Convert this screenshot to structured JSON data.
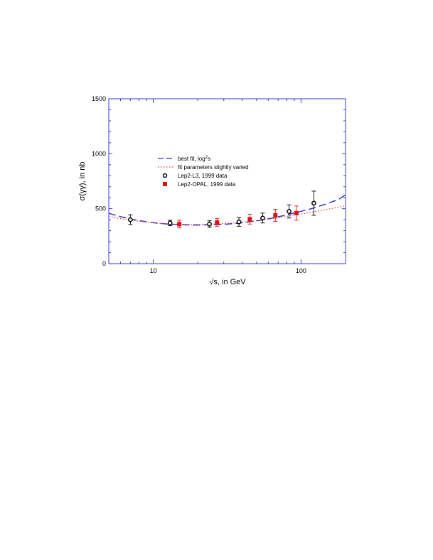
{
  "chart_data": {
    "type": "scatter",
    "xlabel": "√s, in GeV",
    "ylabel": "σ(γγ), in nb",
    "x_scale": "log",
    "xlim": [
      5,
      200
    ],
    "ylim": [
      0,
      1500
    ],
    "x_ticks": [
      {
        "value": 10,
        "label": "10"
      },
      {
        "value": 100,
        "label": "100"
      }
    ],
    "y_ticks": [
      {
        "value": 0,
        "label": "0"
      },
      {
        "value": 500,
        "label": "500"
      },
      {
        "value": 1000,
        "label": "1000"
      },
      {
        "value": 1500,
        "label": "1500"
      }
    ],
    "grid": false,
    "legend_position": "center-left",
    "legend": {
      "best_fit_label": "best fit, log",
      "best_fit_sup": "2",
      "best_fit_tail": "s",
      "varied_label": "fit parameters slightly varied",
      "l3_label": "Lep2-L3,      1999 data",
      "opal_label": "Lep2-OPAL, 1999 data"
    },
    "series": [
      {
        "name": "best fit, log²s",
        "kind": "line",
        "style": "long-dash",
        "color": "#2a2acc",
        "x": [
          5,
          6,
          7,
          8,
          10,
          12,
          14,
          17,
          20,
          25,
          30,
          35,
          40,
          50,
          60,
          70,
          80,
          100,
          120,
          150,
          180,
          200
        ],
        "y": [
          458,
          428,
          407,
          392,
          372,
          362,
          356,
          352,
          351,
          353,
          358,
          364,
          372,
          389,
          408,
          426,
          443,
          476,
          504,
          546,
          585,
          627
        ]
      },
      {
        "name": "fit parameters slightly varied",
        "kind": "line",
        "style": "dotted",
        "color": "#e03030",
        "x": [
          5,
          6,
          7,
          8,
          10,
          12,
          14,
          17,
          20,
          25,
          30,
          35,
          40,
          50,
          60,
          70,
          80,
          100,
          120,
          150,
          180,
          200
        ],
        "y": [
          428,
          410,
          396,
          386,
          372,
          364,
          360,
          357,
          357,
          360,
          364,
          370,
          377,
          391,
          405,
          418,
          430,
          451,
          470,
          494,
          514,
          527
        ]
      },
      {
        "name": "Lep2-L3,      1999 data",
        "kind": "points",
        "marker": "open-circle",
        "color": "#000000",
        "x": [
          7,
          13,
          24,
          38,
          55,
          83,
          122
        ],
        "y": [
          400,
          370,
          360,
          380,
          415,
          475,
          550
        ],
        "err": [
          45,
          25,
          30,
          40,
          45,
          60,
          110
        ]
      },
      {
        "name": "Lep2-OPAL, 1999 data",
        "kind": "points",
        "marker": "filled-square",
        "color": "#e01010",
        "x": [
          15,
          27,
          45,
          67,
          93
        ],
        "y": [
          360,
          375,
          405,
          440,
          460
        ],
        "err": [
          35,
          35,
          45,
          55,
          65
        ]
      }
    ]
  }
}
